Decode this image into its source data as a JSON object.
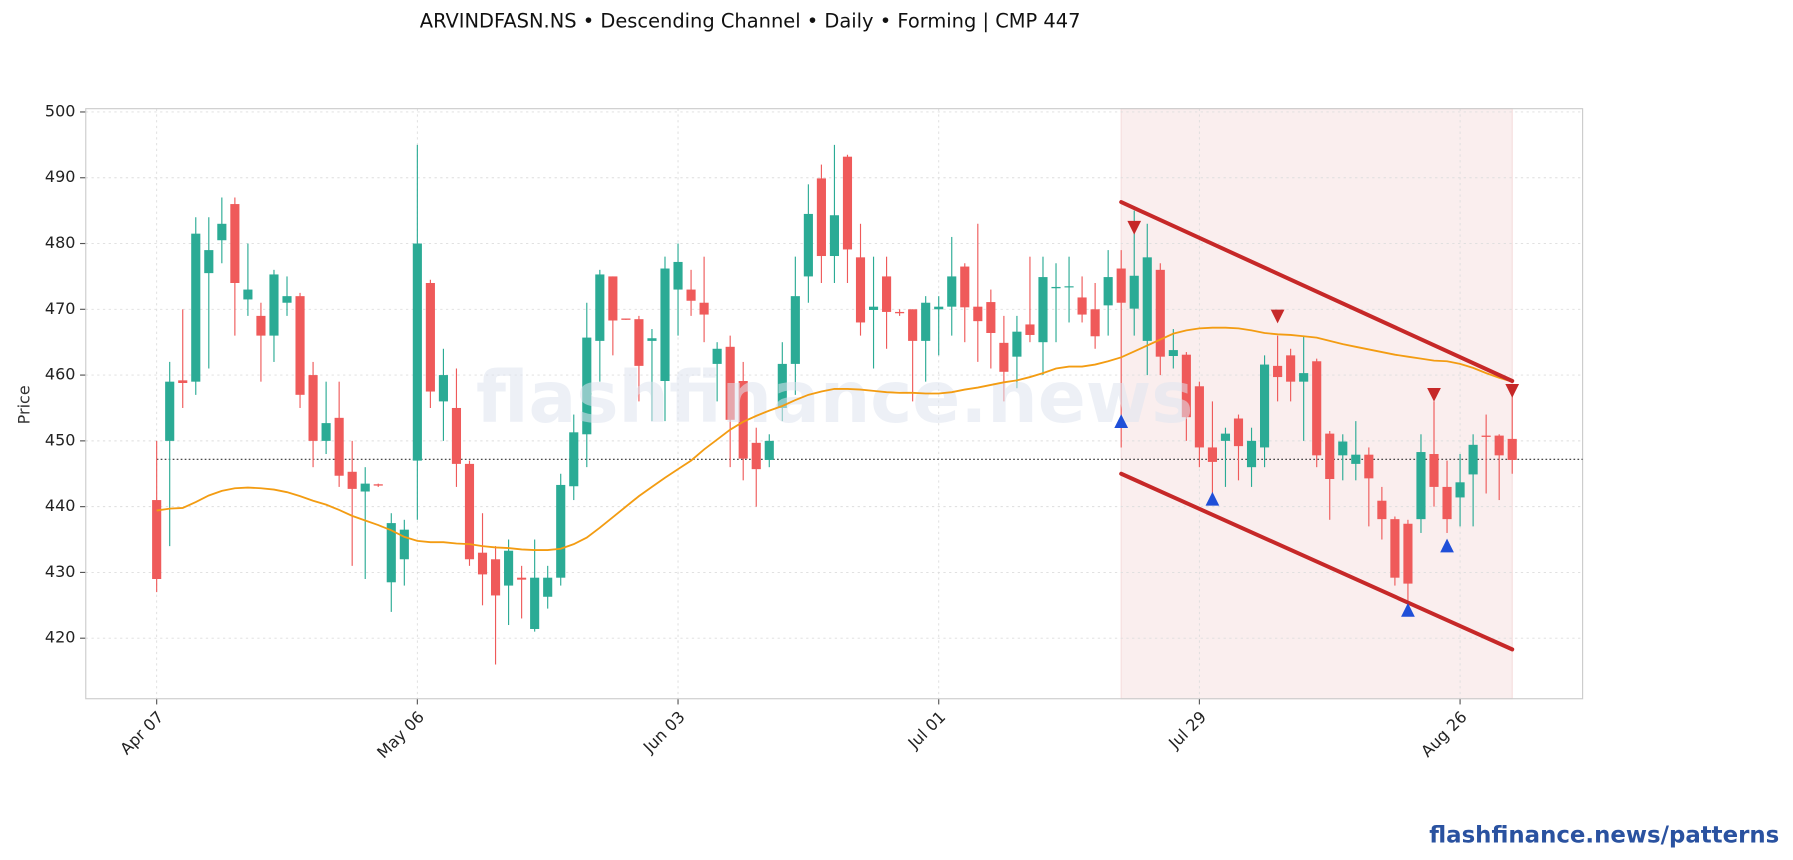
{
  "chart_data": {
    "type": "candlestick",
    "title": "ARVINDFASN.NS  •  Descending Channel  •  Daily  •  Forming  |  CMP 447",
    "ylabel": "Price",
    "watermark": "flashfinance.news",
    "xlim": [
      -5.44,
      109.4
    ],
    "ylim": [
      410.8,
      500.5
    ],
    "yticks": [
      420,
      430,
      440,
      450,
      460,
      470,
      480,
      490,
      500
    ],
    "xticks": [
      {
        "value": 0,
        "label": "Apr 07"
      },
      {
        "value": 20,
        "label": "May 06"
      },
      {
        "value": 40,
        "label": "Jun 03"
      },
      {
        "value": 60,
        "label": "Jul 01"
      },
      {
        "value": 80,
        "label": "Jul 29"
      },
      {
        "value": 100,
        "label": "Aug 26"
      }
    ],
    "grid": true,
    "up_color": "#2bab95",
    "down_color": "#ef5a5a",
    "candles": {
      "open": [
        441,
        450,
        459.2,
        459,
        475.5,
        480.5,
        486,
        471.5,
        469,
        466,
        471,
        472,
        460,
        450,
        453.5,
        445.3,
        442.3,
        443.4,
        428.5,
        432,
        447,
        474,
        456,
        455,
        446.5,
        433,
        432,
        428,
        429.2,
        421.4,
        426.3,
        429.2,
        443.1,
        451,
        465.2,
        475,
        468.6,
        468.5,
        465.2,
        459.1,
        473,
        473,
        471,
        461.7,
        464.3,
        459.1,
        449.7,
        447.1,
        455,
        461.7,
        475,
        489.9,
        478.1,
        493.2,
        477.9,
        469.9,
        475,
        469.6,
        470,
        465.2,
        470,
        470.4,
        476.5,
        470.4,
        471.1,
        464.9,
        462.8,
        467.7,
        465,
        473.2,
        473.4,
        471.8,
        470,
        470.6,
        476.2,
        470.1,
        465.2,
        476,
        462.9,
        463.1,
        458.3,
        449,
        450,
        453.4,
        446,
        449,
        461.4,
        463,
        459,
        462.1,
        451.1,
        447.8,
        446.5,
        447.9,
        440.9,
        438.1,
        437.4,
        438.1,
        448,
        443,
        441.4,
        444.9,
        450.8,
        450.8,
        450.3
      ],
      "high": [
        450,
        462,
        470,
        484,
        484,
        487,
        487,
        480,
        471,
        476,
        475,
        472.5,
        462,
        459,
        459,
        450,
        446,
        443.5,
        439,
        438,
        495,
        474.5,
        464,
        461,
        447,
        439,
        434,
        435,
        431,
        435,
        431,
        445,
        454,
        471,
        476,
        475,
        468.6,
        469,
        467,
        478,
        480,
        476,
        478,
        465,
        466,
        462,
        452,
        451,
        465,
        478,
        489,
        492,
        495,
        493.5,
        483,
        478,
        478,
        470,
        470,
        472,
        472,
        481,
        477,
        483,
        473,
        469,
        469,
        478,
        478,
        477,
        478,
        475,
        474,
        479,
        479,
        485,
        483,
        477,
        467,
        463.5,
        459,
        456,
        452,
        454,
        452,
        463,
        466,
        464,
        466,
        462.5,
        451.5,
        451,
        453,
        449,
        443,
        438.5,
        438,
        451,
        456,
        447,
        448,
        451,
        454,
        451,
        457
      ],
      "low": [
        427,
        434,
        455,
        457,
        461,
        477,
        466,
        469,
        459,
        462,
        469,
        455,
        446,
        448,
        443,
        431,
        429,
        443,
        424,
        428,
        438,
        455,
        450,
        443,
        431,
        425,
        416,
        422,
        423,
        421,
        424.5,
        428,
        441,
        446,
        459,
        463,
        468.4,
        456,
        453,
        453,
        466,
        469,
        465,
        456,
        446,
        444,
        440,
        446,
        453,
        457,
        471,
        474,
        474,
        474,
        466,
        461,
        464,
        469,
        456,
        459,
        463,
        466,
        465,
        462,
        461,
        456,
        458,
        465,
        460,
        465,
        468,
        468,
        464,
        466,
        449,
        466,
        460,
        460,
        461,
        450,
        446,
        441,
        443,
        444,
        443,
        446,
        456,
        456,
        450,
        446,
        438,
        444,
        444,
        437,
        435,
        428,
        425,
        436,
        440,
        436,
        437,
        437,
        442,
        441,
        445
      ],
      "close": [
        429,
        459,
        458.8,
        481.5,
        479,
        483,
        474,
        473,
        466,
        475.3,
        472,
        457,
        450,
        452.7,
        444.7,
        442.7,
        443.5,
        443.2,
        437.5,
        436.5,
        480,
        457.5,
        460,
        446.5,
        432,
        429.7,
        426.5,
        433.3,
        428.9,
        429.2,
        429.2,
        443.3,
        451.3,
        465.7,
        475.3,
        468.3,
        468.4,
        461.4,
        465.6,
        476.2,
        477.2,
        471.3,
        469.2,
        464,
        453.2,
        447.3,
        445.7,
        450,
        461.7,
        472,
        484.5,
        478.1,
        484.3,
        479.1,
        468,
        470.4,
        469.6,
        469.4,
        465.2,
        471,
        470.4,
        475,
        470.3,
        468.2,
        466.4,
        460.5,
        466.6,
        466.1,
        474.9,
        473.4,
        473.5,
        469.2,
        465.9,
        474.9,
        471,
        475.1,
        477.9,
        462.8,
        463.8,
        453.6,
        449,
        446.8,
        451.1,
        449.2,
        450,
        461.6,
        459.7,
        459,
        460.3,
        447.8,
        444.2,
        449.9,
        447.9,
        444.3,
        438.1,
        429.2,
        428.3,
        448.3,
        443,
        438.1,
        443.7,
        449.4,
        450.6,
        447.8,
        447.1
      ]
    },
    "moving_average": {
      "color": "#f39c12",
      "values": [
        439.4,
        439.7,
        439.8,
        440.7,
        441.7,
        442.4,
        442.8,
        442.9,
        442.8,
        442.6,
        442.2,
        441.6,
        440.9,
        440.3,
        439.5,
        438.6,
        437.9,
        437.2,
        436.4,
        435.4,
        434.8,
        434.6,
        434.6,
        434.4,
        434.3,
        434,
        433.8,
        433.7,
        433.5,
        433.4,
        433.4,
        433.6,
        434.3,
        435.3,
        436.8,
        438.4,
        440,
        441.6,
        443,
        444.4,
        445.7,
        447,
        448.7,
        450.2,
        451.7,
        452.9,
        453.8,
        454.6,
        455.3,
        456.2,
        457,
        457.5,
        457.9,
        457.9,
        457.8,
        457.6,
        457.4,
        457.3,
        457.3,
        457.2,
        457.2,
        457.4,
        457.8,
        458.1,
        458.5,
        458.9,
        459.2,
        459.7,
        460.3,
        461,
        461.3,
        461.3,
        461.6,
        462.1,
        462.7,
        463.6,
        464.5,
        465.4,
        466.3,
        466.8,
        467.1,
        467.2,
        467.2,
        467.1,
        466.8,
        466.4,
        466.2,
        466.1,
        465.9,
        465.7,
        465.2,
        464.7,
        464.3,
        463.9,
        463.5,
        463.1,
        462.8,
        462.5,
        462.2,
        462.1,
        461.7,
        461.1,
        460.3,
        459.6,
        459
      ]
    },
    "reference_line": {
      "value": 447.2,
      "color": "#333333"
    },
    "shaded_range": {
      "x": [
        74,
        104
      ],
      "color": "#f6dede"
    },
    "channel": {
      "color": "#c62828",
      "upper": {
        "x": [
          74,
          104
        ],
        "y": [
          486.3,
          459.1
        ]
      },
      "lower": {
        "x": [
          74,
          104
        ],
        "y": [
          445,
          418.3
        ]
      }
    },
    "pivot_highs": {
      "color": "#c62828",
      "x": [
        75,
        86,
        98,
        104
      ],
      "y": [
        482.4,
        468.9,
        457,
        457.6
      ]
    },
    "pivot_lows": {
      "color": "#1f4fd8",
      "x": [
        74,
        81,
        96,
        99
      ],
      "y": [
        453,
        441.2,
        424.3,
        434.1
      ]
    }
  },
  "footer": "flashfinance.news/patterns"
}
